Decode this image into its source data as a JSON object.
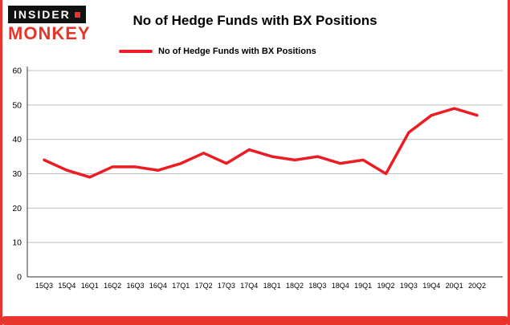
{
  "brand": {
    "line1": "INSIDER",
    "line2": "MONKEY"
  },
  "header": {
    "title": "No of Hedge Funds with BX Positions"
  },
  "legend": {
    "label": "No of Hedge Funds with BX Positions",
    "color": "#ed1c24"
  },
  "colors": {
    "accent": "#e8352c",
    "grid": "#bfbfbf",
    "axis": "#333333",
    "text": "#000000"
  },
  "chart_data": {
    "type": "line",
    "title": "No of Hedge Funds with BX Positions",
    "categories": [
      "15Q3",
      "15Q4",
      "16Q1",
      "16Q2",
      "16Q3",
      "16Q4",
      "17Q1",
      "17Q2",
      "17Q3",
      "17Q4",
      "18Q1",
      "18Q2",
      "18Q3",
      "18Q4",
      "19Q1",
      "19Q2",
      "19Q3",
      "19Q4",
      "20Q1",
      "20Q2"
    ],
    "series": [
      {
        "name": "No of Hedge Funds with BX Positions",
        "color": "#ed1c24",
        "values": [
          34,
          31,
          29,
          32,
          32,
          31,
          33,
          36,
          33,
          37,
          35,
          34,
          35,
          33,
          34,
          30,
          42,
          47,
          49,
          47
        ]
      }
    ],
    "xlabel": "",
    "ylabel": "",
    "ylim": [
      0,
      60
    ],
    "yticks": [
      0,
      10,
      20,
      30,
      40,
      50,
      60
    ],
    "grid": true,
    "legend_position": "top-left"
  }
}
